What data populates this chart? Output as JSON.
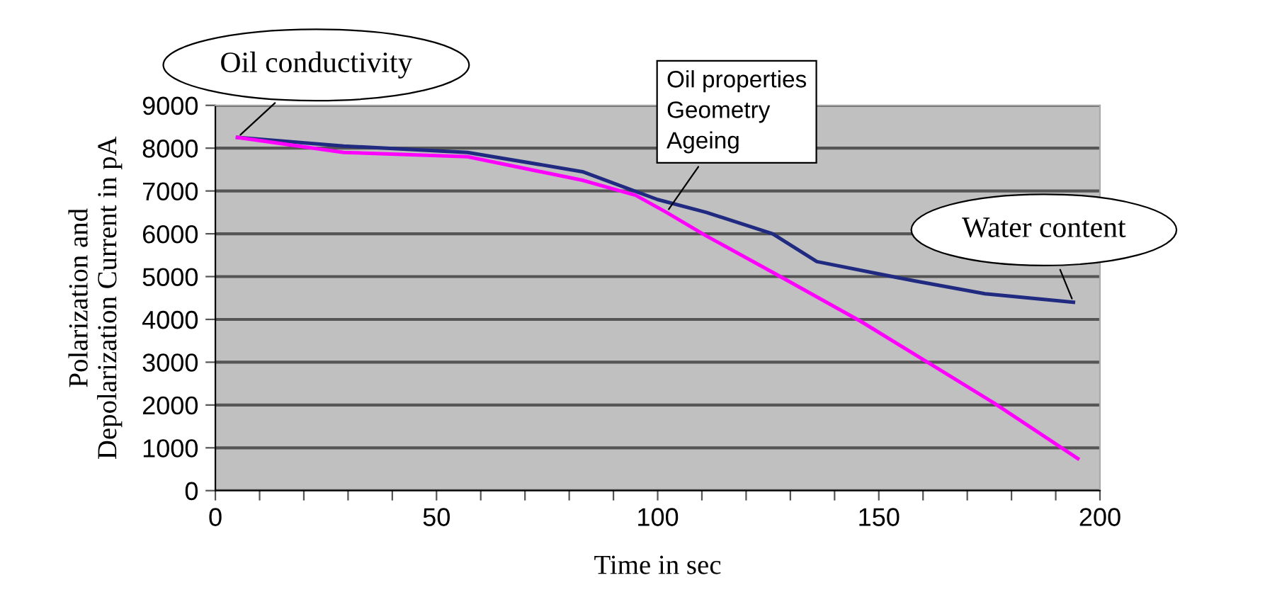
{
  "chart_data": {
    "type": "line",
    "xlabel": "Time in sec",
    "ylabel": "Polarization and\nDepolarization Current in pA",
    "series": [
      {
        "color": "#1f2a80",
        "x": [
          5,
          29,
          57,
          83,
          100,
          111,
          126,
          136,
          158,
          174,
          194
        ],
        "values": [
          8250,
          8050,
          7900,
          7450,
          6800,
          6500,
          6000,
          5350,
          4900,
          4600,
          4400
        ]
      },
      {
        "color": "#ff00ff",
        "x": [
          5,
          29,
          57,
          83,
          95,
          102,
          111,
          126,
          146,
          161,
          176,
          195
        ],
        "values": [
          8250,
          7900,
          7800,
          7250,
          6900,
          6500,
          5950,
          5100,
          3950,
          3000,
          2050,
          750
        ]
      }
    ],
    "xlim": [
      0,
      200
    ],
    "ylim": [
      0,
      9000
    ],
    "xticks": [
      0,
      {
        "value": 10,
        "label": null
      },
      {
        "value": 20,
        "label": null
      },
      {
        "value": 30,
        "label": null
      },
      {
        "value": 40,
        "label": null
      },
      50,
      {
        "value": 60,
        "label": null
      },
      {
        "value": 70,
        "label": null
      },
      {
        "value": 80,
        "label": null
      },
      {
        "value": 90,
        "label": null
      },
      100,
      {
        "value": 110,
        "label": null
      },
      {
        "value": 120,
        "label": null
      },
      {
        "value": 130,
        "label": null
      },
      {
        "value": 140,
        "label": null
      },
      150,
      {
        "value": 160,
        "label": null
      },
      {
        "value": 170,
        "label": null
      },
      {
        "value": 180,
        "label": null
      },
      {
        "value": 190,
        "label": null
      },
      200
    ],
    "yticks": [
      0,
      1000,
      2000,
      3000,
      4000,
      5000,
      6000,
      7000,
      8000,
      9000
    ],
    "grid": "y",
    "legend": false,
    "marker": "none",
    "line_style": "solid",
    "annotations": [
      {
        "text": "Oil conductivity",
        "x": 5,
        "y": 8250
      },
      {
        "text": "Oil properties\nGeometry\nAgeing",
        "x": 102,
        "y": 6500
      },
      {
        "text": "Water content",
        "x": 194,
        "y": 4400
      }
    ]
  }
}
